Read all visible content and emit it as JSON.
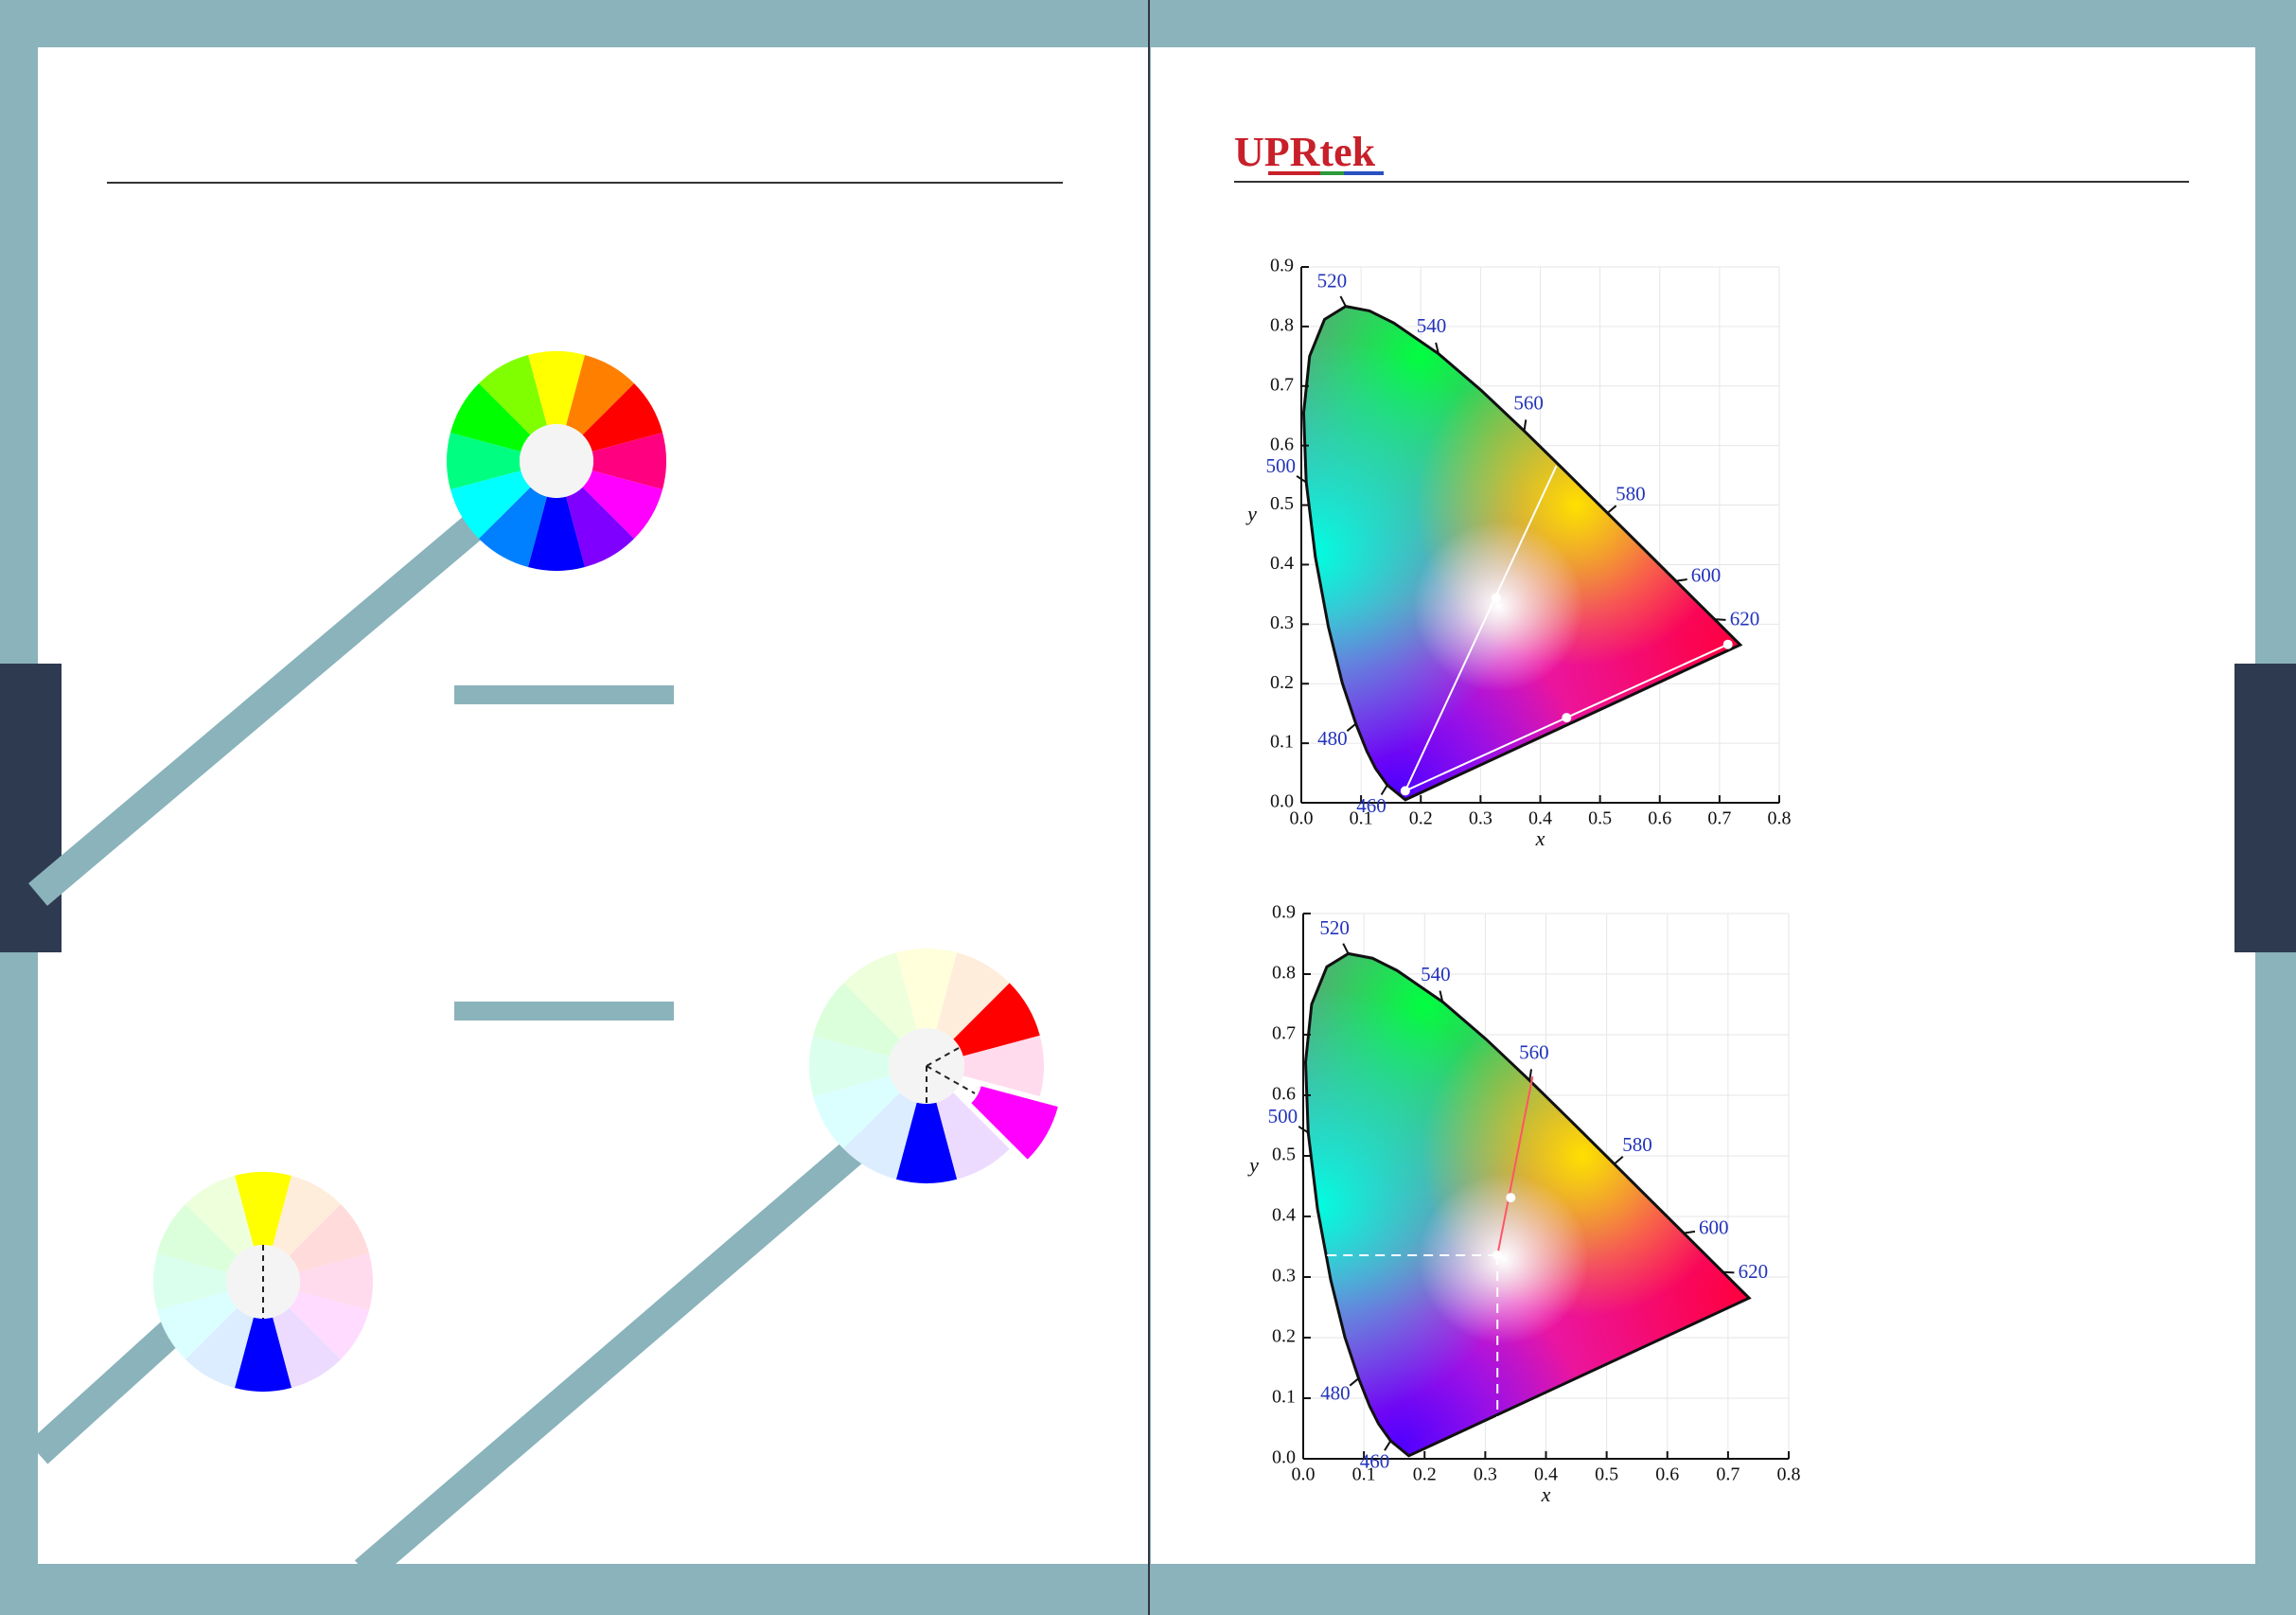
{
  "logo": "UPRtek",
  "spectral_locus": {
    "x": [
      0.1741,
      0.144,
      0.1241,
      0.1096,
      0.0913,
      0.0687,
      0.0454,
      0.0235,
      0.0082,
      0.0039,
      0.0139,
      0.0389,
      0.0743,
      0.1142,
      0.1547,
      0.2296,
      0.3016,
      0.3731,
      0.4441,
      0.5125,
      0.5752,
      0.627,
      0.6915,
      0.719,
      0.7347
    ],
    "y": [
      0.005,
      0.0297,
      0.0578,
      0.0868,
      0.1327,
      0.2007,
      0.295,
      0.4127,
      0.5384,
      0.6548,
      0.7502,
      0.812,
      0.8338,
      0.8262,
      0.8059,
      0.7543,
      0.6923,
      0.6245,
      0.5547,
      0.4866,
      0.4242,
      0.3725,
      0.3083,
      0.2809,
      0.2653
    ]
  },
  "diagrams": [
    {
      "xlabel": "x",
      "ylabel": "y",
      "xlim": [
        0,
        0.8
      ],
      "ylim": [
        0,
        0.9
      ],
      "xticks": [
        {
          "value": 0,
          "label": "0.0"
        },
        0.1,
        0.2,
        0.3,
        0.4,
        0.5,
        0.6,
        0.7,
        0.8
      ],
      "yticks": [
        {
          "value": 0,
          "label": "0.0"
        },
        0.1,
        0.2,
        0.3,
        0.4,
        0.5,
        0.6,
        0.7,
        0.8,
        0.9
      ],
      "wavelength_labels": [
        {
          "label": "460",
          "x": 0.144,
          "y": 0.0297
        },
        {
          "label": "480",
          "x": 0.0913,
          "y": 0.1327
        },
        {
          "label": "500",
          "x": 0.0082,
          "y": 0.5384
        },
        {
          "label": "520",
          "x": 0.0743,
          "y": 0.8338
        },
        {
          "label": "540",
          "x": 0.2296,
          "y": 0.7543
        },
        {
          "label": "560",
          "x": 0.3731,
          "y": 0.6245
        },
        {
          "label": "580",
          "x": 0.5125,
          "y": 0.4866
        },
        {
          "label": "600",
          "x": 0.627,
          "y": 0.3725
        },
        {
          "label": "620",
          "x": 0.6915,
          "y": 0.3083
        }
      ],
      "segments": [
        {
          "from": [
            0.174,
            0.02
          ],
          "to": [
            0.714,
            0.266
          ],
          "color": "#ffffff",
          "style": "solid"
        },
        {
          "from": [
            0.174,
            0.02
          ],
          "to": [
            0.427,
            0.566
          ],
          "color": "#ffffff",
          "style": "solid"
        }
      ],
      "points": [
        [
          0.174,
          0.02
        ],
        [
          0.714,
          0.266
        ],
        [
          0.444,
          0.143
        ],
        [
          0.326,
          0.344
        ]
      ]
    },
    {
      "xlabel": "x",
      "ylabel": "y",
      "xlim": [
        0,
        0.8
      ],
      "ylim": [
        0,
        0.9
      ],
      "xticks": [
        {
          "value": 0,
          "label": "0.0"
        },
        0.1,
        0.2,
        0.3,
        0.4,
        0.5,
        0.6,
        0.7,
        0.8
      ],
      "yticks": [
        {
          "value": 0,
          "label": "0.0"
        },
        0.1,
        0.2,
        0.3,
        0.4,
        0.5,
        0.6,
        0.7,
        0.8,
        0.9
      ],
      "wavelength_labels": [
        {
          "label": "460",
          "x": 0.144,
          "y": 0.0297
        },
        {
          "label": "480",
          "x": 0.0913,
          "y": 0.1327
        },
        {
          "label": "500",
          "x": 0.0082,
          "y": 0.5384
        },
        {
          "label": "520",
          "x": 0.0743,
          "y": 0.8338
        },
        {
          "label": "540",
          "x": 0.2296,
          "y": 0.7543
        },
        {
          "label": "560",
          "x": 0.3731,
          "y": 0.6245
        },
        {
          "label": "580",
          "x": 0.5125,
          "y": 0.4866
        },
        {
          "label": "600",
          "x": 0.627,
          "y": 0.3725
        },
        {
          "label": "620",
          "x": 0.6915,
          "y": 0.3083
        }
      ],
      "segments": [
        {
          "from": [
            0.32,
            0.336
          ],
          "to": [
            0.378,
            0.631
          ],
          "color": "#ff5566",
          "style": "solid"
        },
        {
          "from": [
            0.32,
            0.336
          ],
          "to": [
            0.035,
            0.336
          ],
          "color": "#ffffff",
          "style": "dashed"
        },
        {
          "from": [
            0.32,
            0.336
          ],
          "to": [
            0.32,
            0.03
          ],
          "color": "#ffffff",
          "style": "dashed"
        }
      ],
      "points": [
        [
          0.32,
          0.336
        ],
        [
          0.342,
          0.431
        ]
      ]
    }
  ]
}
